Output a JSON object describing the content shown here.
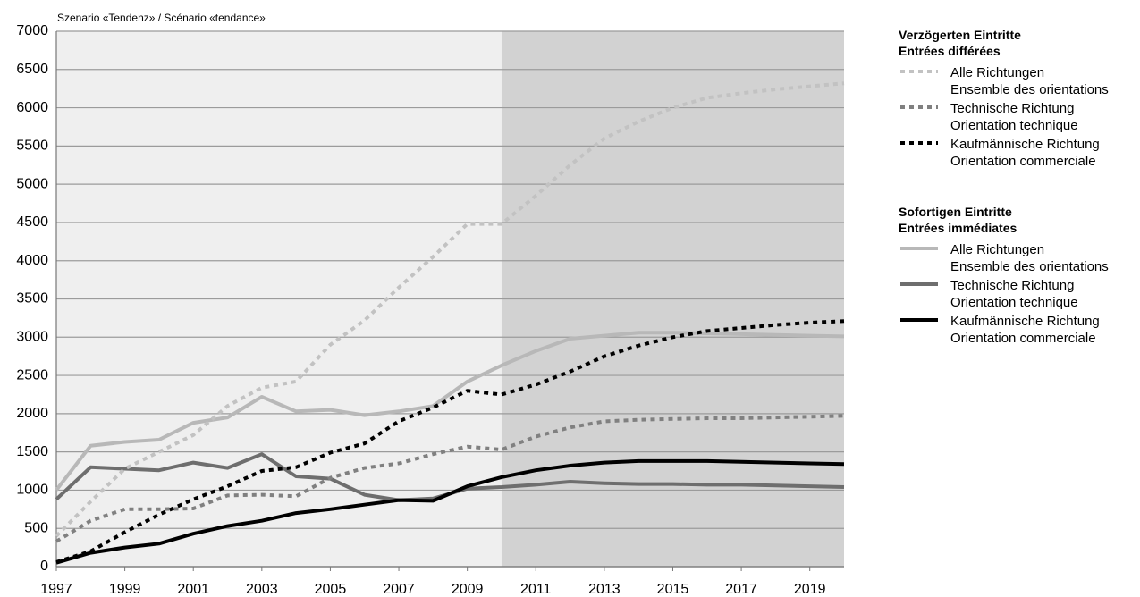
{
  "chart_data": {
    "type": "line",
    "subtitle": "Szenario «Tendenz» / Scénario «tendance»",
    "x": [
      1997,
      1998,
      1999,
      2000,
      2001,
      2002,
      2003,
      2004,
      2005,
      2006,
      2007,
      2008,
      2009,
      2010,
      2011,
      2012,
      2013,
      2014,
      2015,
      2016,
      2017,
      2018,
      2019,
      2020
    ],
    "x_tick_labels": [
      "1997",
      "1999",
      "2001",
      "2003",
      "2005",
      "2007",
      "2009",
      "2011",
      "2013",
      "2015",
      "2017",
      "2019"
    ],
    "ylim": [
      0,
      7000
    ],
    "y_tick_labels": [
      "0",
      "500",
      "1000",
      "1500",
      "2000",
      "2500",
      "3000",
      "3500",
      "4000",
      "4500",
      "5000",
      "5500",
      "6000",
      "6500",
      "7000"
    ],
    "grid": true,
    "shaded_region": {
      "from": 1997,
      "to": 2010,
      "color": "#efefef"
    },
    "scenario_region": {
      "from": 2010,
      "to": 2020,
      "color": "#d2d2d2"
    },
    "legend_placement": "right",
    "groups": [
      {
        "title_de": "Verzögerten Eintritte",
        "title_fr": "Entrées différées"
      },
      {
        "title_de": "Sofortigen Eintritte",
        "title_fr": "Entrées immédiates"
      }
    ],
    "series": [
      {
        "name_de": "Alle Richtungen",
        "name_fr": "Ensemble des orientations",
        "group": 0,
        "style": "dotted",
        "color": "#c2c2c2",
        "values": [
          400,
          850,
          1280,
          1500,
          1720,
          2100,
          2340,
          2420,
          2900,
          3220,
          3650,
          4050,
          4480,
          4480,
          4850,
          5250,
          5600,
          5820,
          6000,
          6130,
          6190,
          6240,
          6280,
          6320
        ]
      },
      {
        "name_de": "Technische Richtung",
        "name_fr": "Orientation technique",
        "group": 0,
        "style": "dotted",
        "color": "#808080",
        "values": [
          330,
          600,
          750,
          750,
          760,
          930,
          940,
          920,
          1160,
          1290,
          1350,
          1470,
          1570,
          1530,
          1700,
          1820,
          1900,
          1920,
          1930,
          1940,
          1940,
          1950,
          1960,
          1970
        ]
      },
      {
        "name_de": "Kaufmännische Richtung",
        "name_fr": "Orientation commerciale",
        "group": 0,
        "style": "dotted",
        "color": "#000000",
        "values": [
          60,
          200,
          450,
          680,
          880,
          1050,
          1250,
          1300,
          1490,
          1610,
          1900,
          2080,
          2300,
          2250,
          2380,
          2550,
          2750,
          2890,
          3000,
          3080,
          3120,
          3160,
          3190,
          3210
        ]
      },
      {
        "name_de": "Alle Richtungen",
        "name_fr": "Ensemble des orientations",
        "group": 1,
        "style": "solid",
        "color": "#b8b8b8",
        "values": [
          1000,
          1580,
          1630,
          1660,
          1880,
          1950,
          2220,
          2030,
          2050,
          1980,
          2030,
          2100,
          2420,
          2630,
          2820,
          2980,
          3020,
          3060,
          3060,
          3050,
          3040,
          3030,
          3020,
          3010
        ]
      },
      {
        "name_de": "Technische Richtung",
        "name_fr": "Orientation technique",
        "group": 1,
        "style": "solid",
        "color": "#6e6e6e",
        "values": [
          880,
          1300,
          1280,
          1260,
          1360,
          1290,
          1470,
          1180,
          1150,
          940,
          870,
          890,
          1020,
          1040,
          1070,
          1110,
          1090,
          1080,
          1080,
          1070,
          1070,
          1060,
          1050,
          1040
        ]
      },
      {
        "name_de": "Kaufmännische Richtung",
        "name_fr": "Orientation commerciale",
        "group": 1,
        "style": "solid",
        "color": "#000000",
        "values": [
          50,
          180,
          250,
          300,
          430,
          530,
          600,
          700,
          750,
          810,
          870,
          860,
          1050,
          1170,
          1260,
          1320,
          1360,
          1380,
          1380,
          1380,
          1370,
          1360,
          1350,
          1340
        ]
      }
    ]
  }
}
